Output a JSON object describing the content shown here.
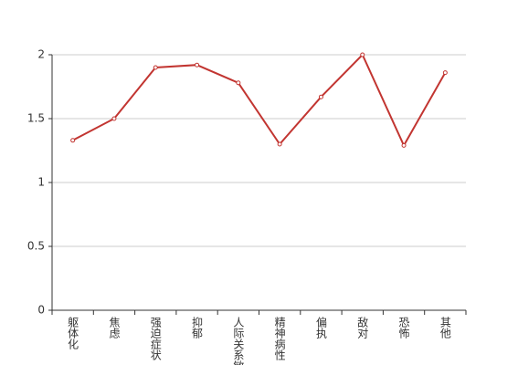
{
  "chart_data": {
    "type": "line",
    "categories": [
      "躯体化",
      "焦虑",
      "强迫症状",
      "抑郁",
      "人际关系敏感",
      "精神病性",
      "偏执",
      "敌对",
      "恐怖",
      "其他"
    ],
    "values": [
      1.33,
      1.5,
      1.9,
      1.92,
      1.78,
      1.3,
      1.67,
      2,
      1.29,
      1.86
    ],
    "color": "#c23531",
    "ylim": [
      0,
      2
    ],
    "yticks": [
      0,
      0.5,
      1,
      1.5,
      2
    ],
    "grid": true
  }
}
